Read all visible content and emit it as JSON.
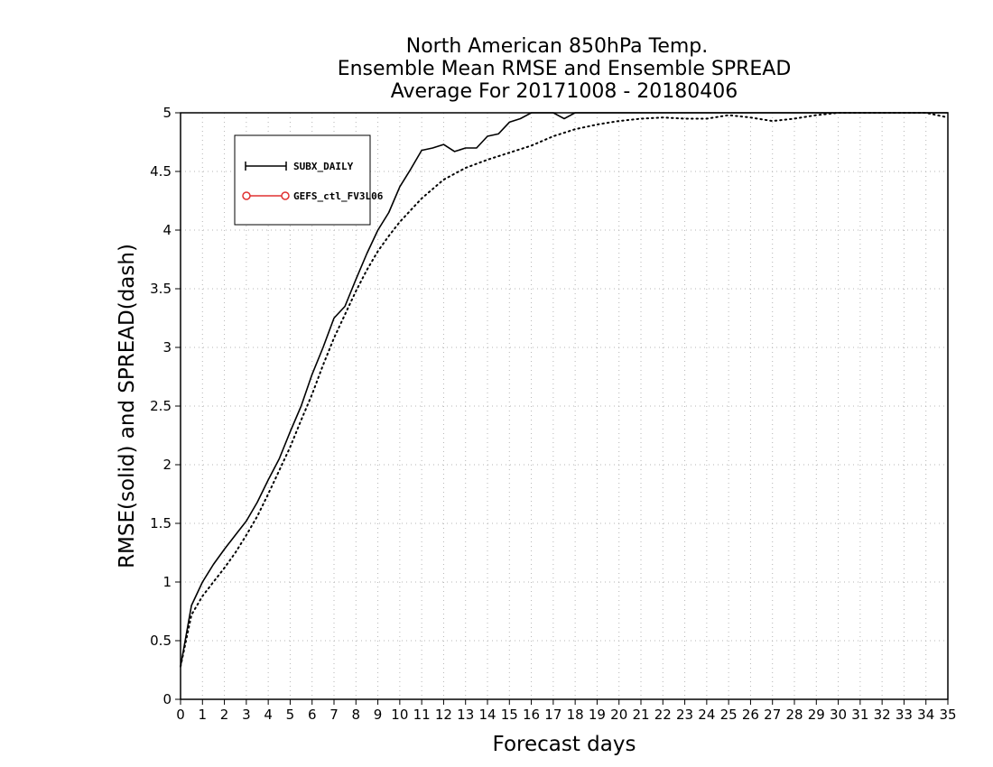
{
  "chart_data": {
    "type": "line",
    "title_lines": [
      "North American 850hPa Temp.",
      "Ensemble Mean RMSE and Ensemble SPREAD",
      "Average For 20171008 - 20180406"
    ],
    "xlabel": "Forecast days",
    "ylabel": "RMSE(solid) and SPREAD(dash)",
    "xlim": [
      0,
      35
    ],
    "ylim": [
      0,
      5
    ],
    "x_ticks": [
      "0",
      "1",
      "2",
      "3",
      "4",
      "5",
      "6",
      "7",
      "8",
      "9",
      "10",
      "11",
      "12",
      "13",
      "14",
      "15",
      "16",
      "17",
      "18",
      "19",
      "20",
      "21",
      "22",
      "23",
      "24",
      "25",
      "26",
      "27",
      "28",
      "29",
      "30",
      "31",
      "32",
      "33",
      "34",
      "35"
    ],
    "y_ticks": [
      "0",
      "0.5",
      "1",
      "1.5",
      "2",
      "2.5",
      "3",
      "3.5",
      "4",
      "4.5",
      "5"
    ],
    "grid": true,
    "legend": {
      "placement": "top-left",
      "entries": [
        {
          "label": "SUBX_DAILY",
          "color": "#000000",
          "marker": "plus"
        },
        {
          "label": "GEFS_ctl_FV3L06",
          "color": "#e03030",
          "marker": "circle"
        }
      ]
    },
    "series": [
      {
        "name": "SUBX_DAILY",
        "style": "solid",
        "color": "#000000",
        "x": [
          0,
          0.5,
          1,
          1.5,
          2,
          2.5,
          3,
          3.5,
          4,
          4.5,
          5,
          5.5,
          6,
          6.5,
          7,
          7.5,
          8,
          8.5,
          9,
          9.5,
          10,
          10.5,
          11,
          11.5,
          12,
          12.5,
          13,
          13.5,
          14,
          14.5,
          15,
          15.5,
          16,
          16.5,
          17,
          17.5,
          18,
          35
        ],
        "y": [
          0.28,
          0.8,
          1.0,
          1.15,
          1.28,
          1.4,
          1.52,
          1.68,
          1.87,
          2.05,
          2.28,
          2.5,
          2.77,
          3.0,
          3.25,
          3.35,
          3.58,
          3.8,
          4.0,
          4.15,
          4.37,
          4.52,
          4.68,
          4.7,
          4.73,
          4.67,
          4.7,
          4.7,
          4.8,
          4.82,
          4.92,
          4.95,
          5.0,
          5.0,
          5.0,
          4.95,
          5.0,
          5.0
        ]
      },
      {
        "name": "Ensemble SPREAD",
        "style": "dotted",
        "color": "#000000",
        "x": [
          0,
          0.5,
          1,
          1.5,
          2,
          2.5,
          3,
          3.5,
          4,
          4.5,
          5,
          5.5,
          6,
          6.5,
          7,
          7.5,
          8,
          8.5,
          9,
          9.5,
          10,
          11,
          12,
          13,
          14,
          15,
          16,
          17,
          18,
          19,
          20,
          21,
          22,
          23,
          24,
          25,
          26,
          27,
          28,
          29,
          30,
          31,
          32,
          33,
          34,
          35
        ],
        "y": [
          0.28,
          0.72,
          0.88,
          1.0,
          1.12,
          1.25,
          1.4,
          1.56,
          1.75,
          1.95,
          2.15,
          2.38,
          2.6,
          2.85,
          3.08,
          3.28,
          3.48,
          3.66,
          3.82,
          3.95,
          4.07,
          4.27,
          4.43,
          4.53,
          4.6,
          4.66,
          4.72,
          4.8,
          4.86,
          4.9,
          4.93,
          4.95,
          4.96,
          4.95,
          4.95,
          4.98,
          4.96,
          4.93,
          4.95,
          4.98,
          5.0,
          5.0,
          5.0,
          5.0,
          5.0,
          4.96
        ]
      }
    ]
  }
}
